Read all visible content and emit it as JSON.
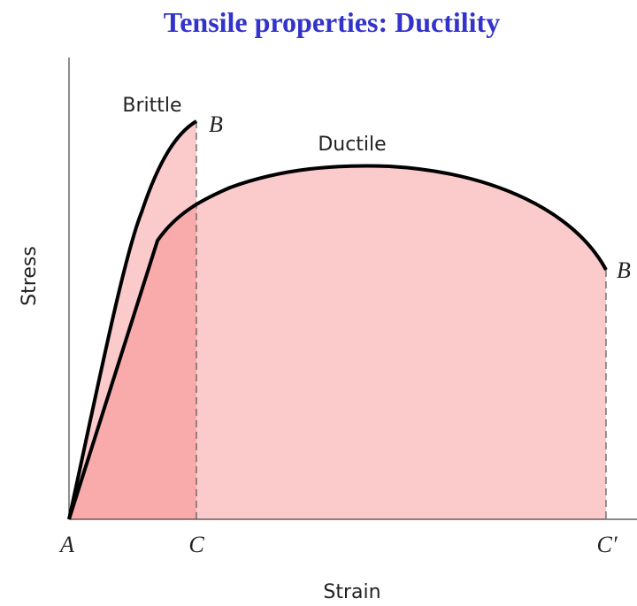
{
  "title": "Tensile properties: Ductility",
  "curves": [
    {
      "label": "Brittle",
      "end_label": "B"
    },
    {
      "label": "Ductile",
      "end_label": "B"
    }
  ],
  "axes": {
    "y_label": "Stress",
    "x_label": "Strain"
  },
  "points": [
    "A",
    "C",
    "C′"
  ]
}
